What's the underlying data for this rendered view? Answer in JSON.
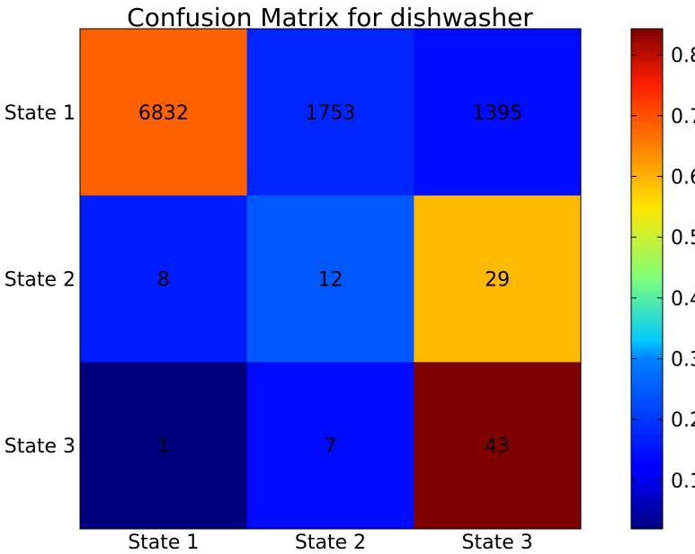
{
  "chart_data": {
    "type": "heatmap",
    "title": "Confusion Matrix for dishwasher",
    "xlabel": "",
    "ylabel": "",
    "x_categories": [
      "State 1",
      "State 2",
      "State 3"
    ],
    "y_categories": [
      "State 1",
      "State 2",
      "State 3"
    ],
    "counts": [
      [
        6832,
        1753,
        1395
      ],
      [
        8,
        12,
        29
      ],
      [
        1,
        7,
        43
      ]
    ],
    "normalized_values": [
      [
        0.683,
        0.175,
        0.14
      ],
      [
        0.163,
        0.245,
        0.592
      ],
      [
        0.02,
        0.137,
        0.843
      ]
    ],
    "colormap": "jet",
    "colorbar": {
      "min": 0.02,
      "max": 0.843,
      "ticks": [
        "0.1",
        "0.2",
        "0.3",
        "0.4",
        "0.5",
        "0.6",
        "0.7",
        "0.8"
      ]
    },
    "grid": false
  }
}
